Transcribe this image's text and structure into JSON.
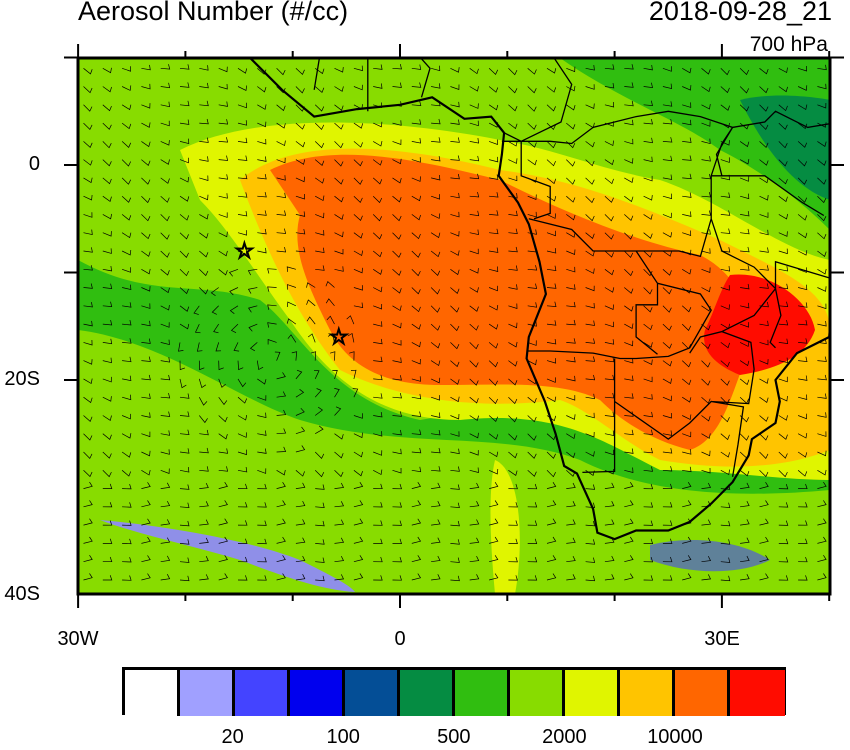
{
  "title": "Aerosol Number (#/cc)",
  "datetime": "2018-09-28_21",
  "level": "700 hPa",
  "map": {
    "projection": "cylindrical equidistant",
    "lon_range": [
      -30,
      40
    ],
    "lat_range": [
      -40,
      10
    ],
    "lat_labels": [
      "0",
      "20S",
      "40S"
    ],
    "lon_labels": [
      "30W",
      "0",
      "30E"
    ],
    "overlay": "wind barbs",
    "markers": [
      {
        "type": "star",
        "lon": -14.5,
        "lat": -8
      },
      {
        "type": "star",
        "lon": -5.7,
        "lat": -16
      }
    ]
  },
  "colorbar": {
    "colors": [
      "#ffffff",
      "#a0a0ff",
      "#4444ff",
      "#0000ee",
      "#044e96",
      "#058c42",
      "#30be10",
      "#88dc00",
      "#e0f500",
      "#ffc400",
      "#ff6600",
      "#ff0c00"
    ],
    "labels": [
      "20",
      "100",
      "500",
      "2000",
      "10000"
    ]
  }
}
